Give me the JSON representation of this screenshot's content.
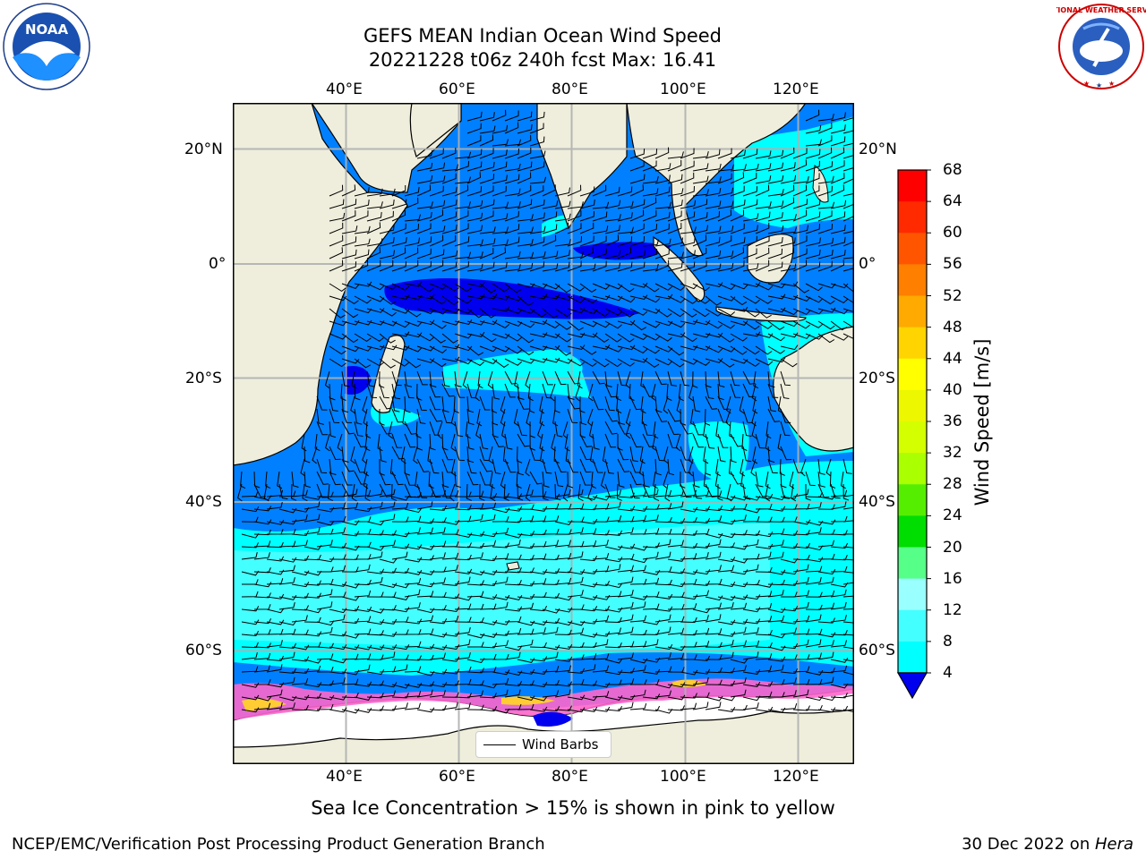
{
  "title": {
    "line1": "GEFS MEAN Indian Ocean Wind Speed",
    "line2": "20221228 t06z 240h fcst   Max: 16.41"
  },
  "axes": {
    "top_lon_labels": [
      "40°E",
      "60°E",
      "80°E",
      "100°E",
      "120°E"
    ],
    "bottom_lon_labels": [
      "40°E",
      "60°E",
      "80°E",
      "100°E",
      "120°E"
    ],
    "left_lat_labels": [
      "20°N",
      "0°",
      "20°S",
      "40°S",
      "60°S"
    ],
    "right_lat_labels": [
      "20°N",
      "0°",
      "20°S",
      "40°S",
      "60°S"
    ]
  },
  "legend": {
    "wind_barbs_label": "Wind Barbs"
  },
  "colorbar": {
    "label": "Wind Speed [m/s]",
    "ticks": [
      "68",
      "64",
      "60",
      "56",
      "52",
      "48",
      "44",
      "40",
      "36",
      "32",
      "28",
      "24",
      "20",
      "16",
      "12",
      "8",
      "4"
    ],
    "colors": [
      "#ff0000",
      "#ff2a00",
      "#ff5500",
      "#ff7f00",
      "#ffaa00",
      "#ffd400",
      "#ffff00",
      "#ecf700",
      "#d4ff00",
      "#aaff00",
      "#55ee00",
      "#00dd00",
      "#33ee55",
      "#55ff88",
      "#99ffff",
      "#44ffff",
      "#00ffff",
      "#00ffff",
      "#0080ff"
    ]
  },
  "annotation": "Sea Ice Concentration > 15% is shown in pink to yellow",
  "footer": {
    "left": "NCEP/EMC/Verification Post Processing Product Generation Branch",
    "right_date": "30 Dec 2022 on ",
    "right_host": "Hera"
  },
  "logos": {
    "noaa": "NOAA",
    "nws": "NATIONAL WEATHER SERVICE"
  },
  "map": {
    "extent": {
      "lon_min": 20,
      "lon_max": 130,
      "lat_min": -75,
      "lat_max": 28
    },
    "gridlines": true,
    "colors": {
      "land": "#efeedc",
      "wind_4_8": "#0080ff",
      "wind_8_12": "#00ffff",
      "wind_12_16": "#44ffff",
      "wind_below_4": "#0000ee",
      "sea_ice": "#ff66cc",
      "sea_ice_high": "#ffcc33",
      "ice_shelf": "#ffffff"
    }
  }
}
